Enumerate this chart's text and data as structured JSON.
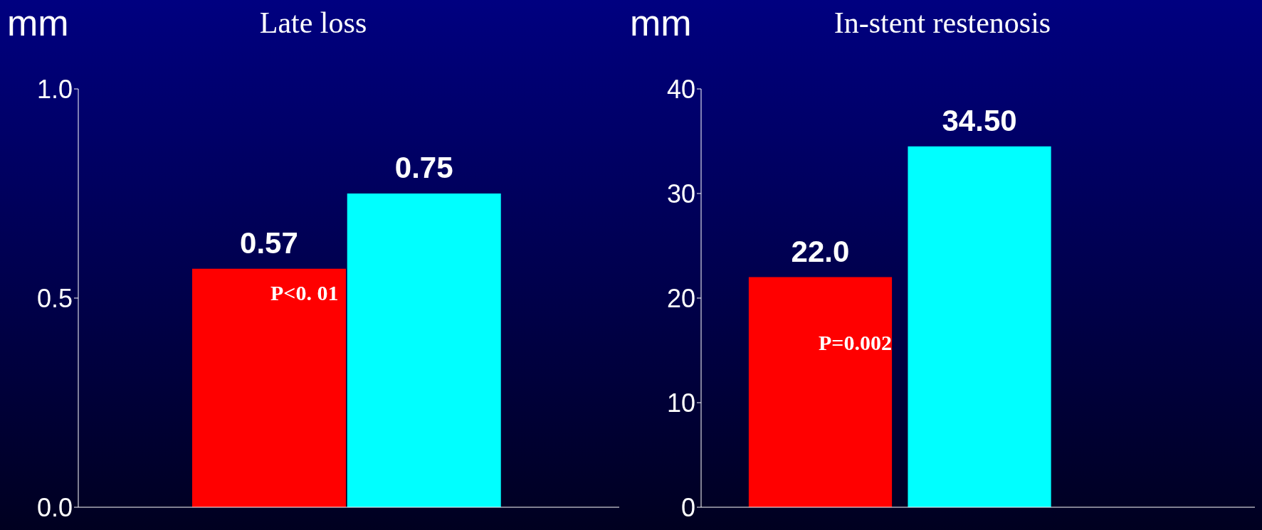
{
  "chart_data": [
    {
      "type": "bar",
      "title": "Late loss",
      "ylabel": "mm",
      "categories": [
        null,
        null
      ],
      "values": [
        0.57,
        0.75
      ],
      "colors": [
        "#ff0000",
        "#00ffff"
      ],
      "ylim": [
        0,
        1
      ],
      "yticks": [
        {
          "value": 0,
          "label": "0.0"
        },
        0.5,
        {
          "value": 1,
          "label": "1.0"
        }
      ],
      "data_labels": true,
      "tick_labels": "y",
      "annotations": [
        "P<0. 01"
      ]
    },
    {
      "type": "bar",
      "title": "In-stent restenosis",
      "ylabel": "mm",
      "categories": [
        null,
        null
      ],
      "values": [
        22.0,
        34.5
      ],
      "value_labels": [
        "22.0",
        "34.50"
      ],
      "colors": [
        "#ff0000",
        "#00ffff"
      ],
      "ylim": [
        0,
        40
      ],
      "yticks": [
        0,
        10,
        20,
        30,
        40
      ],
      "tick_labels": "y",
      "annotations": [
        "P=0.002"
      ]
    }
  ]
}
